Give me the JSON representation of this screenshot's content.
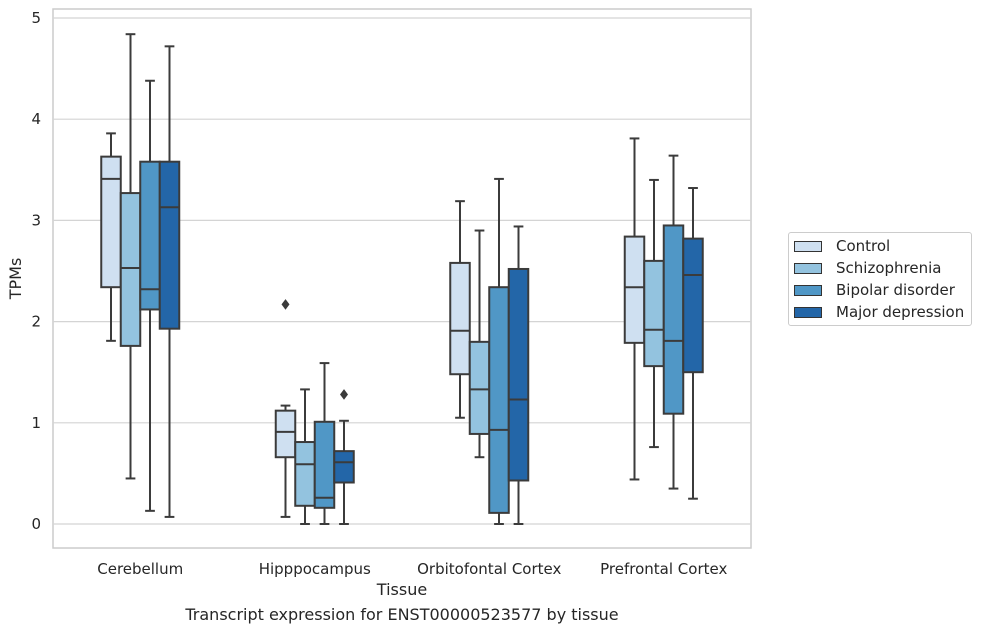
{
  "chart_data": {
    "type": "box",
    "title": "",
    "xlabel": "Tissue",
    "ylabel": "TPMs",
    "ylim": [
      -0.22,
      5.1
    ],
    "yticks": [
      "0",
      "1",
      "2",
      "3",
      "4",
      "5"
    ],
    "grid": "horizontal",
    "legend_position": "right",
    "categories": [
      "Cerebellum",
      "Hipppocampus",
      "Orbitofontal Cortex",
      "Prefrontal Cortex"
    ],
    "series": [
      {
        "name": "Control",
        "color": "#cfe0f1",
        "boxes": [
          {
            "whislo": 1.81,
            "q1": 2.34,
            "med": 3.41,
            "q3": 3.63,
            "whishi": 3.86,
            "fliers": []
          },
          {
            "whislo": 0.07,
            "q1": 0.66,
            "med": 0.91,
            "q3": 1.12,
            "whishi": 1.17,
            "fliers": [
              2.17
            ]
          },
          {
            "whislo": 1.05,
            "q1": 1.48,
            "med": 1.91,
            "q3": 2.58,
            "whishi": 3.19,
            "fliers": []
          },
          {
            "whislo": 0.44,
            "q1": 1.79,
            "med": 2.34,
            "q3": 2.84,
            "whishi": 3.81,
            "fliers": []
          }
        ]
      },
      {
        "name": "Schizophrenia",
        "color": "#93c3df",
        "boxes": [
          {
            "whislo": 0.45,
            "q1": 1.76,
            "med": 2.53,
            "q3": 3.27,
            "whishi": 4.84,
            "fliers": []
          },
          {
            "whislo": 0.0,
            "q1": 0.18,
            "med": 0.59,
            "q3": 0.81,
            "whishi": 1.33,
            "fliers": []
          },
          {
            "whislo": 0.66,
            "q1": 0.89,
            "med": 1.33,
            "q3": 1.8,
            "whishi": 2.9,
            "fliers": []
          },
          {
            "whislo": 0.76,
            "q1": 1.56,
            "med": 1.92,
            "q3": 2.6,
            "whishi": 3.4,
            "fliers": []
          }
        ]
      },
      {
        "name": "Bipolar disorder",
        "color": "#5097c6",
        "boxes": [
          {
            "whislo": 0.13,
            "q1": 2.12,
            "med": 2.32,
            "q3": 3.58,
            "whishi": 4.38,
            "fliers": []
          },
          {
            "whislo": 0.0,
            "q1": 0.16,
            "med": 0.26,
            "q3": 1.01,
            "whishi": 1.59,
            "fliers": []
          },
          {
            "whislo": 0.0,
            "q1": 0.11,
            "med": 0.93,
            "q3": 2.34,
            "whishi": 3.41,
            "fliers": []
          },
          {
            "whislo": 0.35,
            "q1": 1.09,
            "med": 1.81,
            "q3": 2.95,
            "whishi": 3.64,
            "fliers": []
          }
        ]
      },
      {
        "name": "Major depression",
        "color": "#2366a8",
        "boxes": [
          {
            "whislo": 0.07,
            "q1": 1.93,
            "med": 3.13,
            "q3": 3.58,
            "whishi": 4.72,
            "fliers": []
          },
          {
            "whislo": 0.0,
            "q1": 0.41,
            "med": 0.61,
            "q3": 0.72,
            "whishi": 1.02,
            "fliers": [
              1.28
            ]
          },
          {
            "whislo": 0.0,
            "q1": 0.43,
            "med": 1.23,
            "q3": 2.52,
            "whishi": 2.94,
            "fliers": []
          },
          {
            "whislo": 0.25,
            "q1": 1.5,
            "med": 2.46,
            "q3": 2.82,
            "whishi": 3.32,
            "fliers": []
          }
        ]
      }
    ],
    "caption": "Transcript expression for ENST00000523577 by tissue"
  }
}
